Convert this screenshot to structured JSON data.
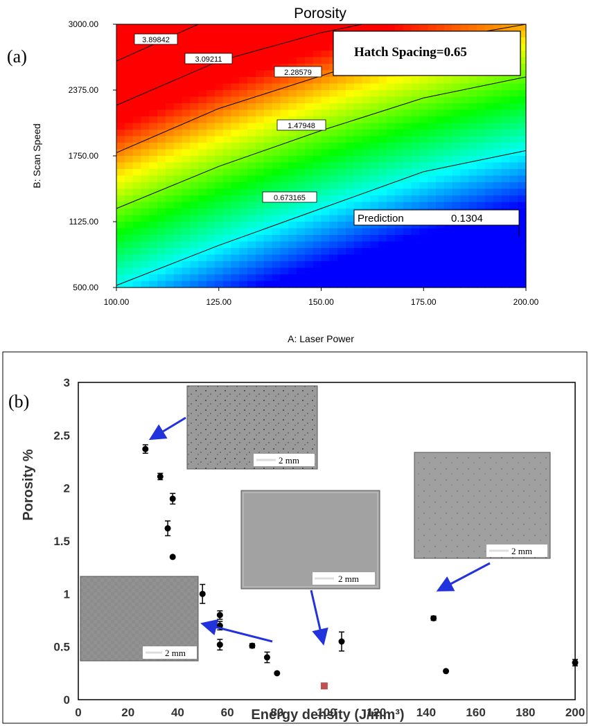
{
  "panel_labels": {
    "a": "(a)",
    "b": "(b)"
  },
  "chart_data": [
    {
      "type": "heatmap",
      "title": "Porosity",
      "xlabel": "A: Laser Power",
      "ylabel": "B: Scan Speed",
      "xlim": [
        100,
        200
      ],
      "ylim": [
        500,
        3000
      ],
      "x_ticks": [
        "100.00",
        "125.00",
        "150.00",
        "175.00",
        "200.00"
      ],
      "y_ticks": [
        "500.00",
        "1125.00",
        "1750.00",
        "2375.00",
        "3000.00"
      ],
      "colormap": [
        "#0000ff",
        "#00ffff",
        "#00ff00",
        "#ffff00",
        "#ff0000"
      ],
      "color_range": [
        0.13,
        2.2
      ],
      "contours": [
        {
          "label": "0.673165",
          "level": 0.673165,
          "points": [
            [
              100,
              520
            ],
            [
              125,
              900
            ],
            [
              150,
              1250
            ],
            [
              175,
              1600
            ],
            [
              200,
              1800
            ]
          ]
        },
        {
          "label": "1.47948",
          "level": 1.47948,
          "points": [
            [
              100,
              1250
            ],
            [
              125,
              1650
            ],
            [
              150,
              1990
            ],
            [
              175,
              2300
            ],
            [
              200,
              2500
            ]
          ]
        },
        {
          "label": "2.28579",
          "level": 2.28579,
          "points": [
            [
              100,
              1780
            ],
            [
              125,
              2200
            ],
            [
              150,
              2510
            ],
            [
              175,
              2830
            ],
            [
              200,
              3000
            ]
          ]
        },
        {
          "label": "3.09211",
          "level": 3.09211,
          "points": [
            [
              100,
              2230
            ],
            [
              125,
              2650
            ],
            [
              150,
              2920
            ],
            [
              160,
              3000
            ]
          ]
        },
        {
          "label": "3.89842",
          "level": 3.89842,
          "points": [
            [
              100,
              2650
            ],
            [
              120,
              3000
            ]
          ]
        }
      ],
      "annotations": {
        "hatch_spacing": "Hatch Spacing=0.65",
        "prediction_label": "Prediction",
        "prediction_value": "0.1304"
      }
    },
    {
      "type": "scatter",
      "xlabel": "Energy density (J/mm³)",
      "ylabel": "Porosity %",
      "xlim": [
        0,
        200
      ],
      "ylim": [
        0,
        3
      ],
      "x_ticks": [
        "0",
        "20",
        "40",
        "60",
        "80",
        "100",
        "120",
        "140",
        "160",
        "180",
        "200"
      ],
      "y_ticks": [
        "0",
        "0.5",
        "1",
        "1.5",
        "2",
        "2.5",
        "3"
      ],
      "series": [
        {
          "marker": "circle",
          "color": "#000000",
          "points": [
            {
              "x": 27,
              "y": 2.37,
              "err": 0.04
            },
            {
              "x": 33,
              "y": 2.11,
              "err": 0.03
            },
            {
              "x": 38,
              "y": 1.9,
              "err": 0.05
            },
            {
              "x": 36,
              "y": 1.62,
              "err": 0.07
            },
            {
              "x": 38,
              "y": 1.35,
              "err": 0
            },
            {
              "x": 50,
              "y": 1.0,
              "err": 0.09
            },
            {
              "x": 57,
              "y": 0.8,
              "err": 0.04
            },
            {
              "x": 57,
              "y": 0.7,
              "err": 0.04
            },
            {
              "x": 57,
              "y": 0.52,
              "err": 0.05
            },
            {
              "x": 70,
              "y": 0.51,
              "err": 0.02
            },
            {
              "x": 76,
              "y": 0.4,
              "err": 0.05
            },
            {
              "x": 80,
              "y": 0.25,
              "err": 0
            },
            {
              "x": 106,
              "y": 0.55,
              "err": 0.09
            },
            {
              "x": 143,
              "y": 0.77,
              "err": 0.02
            },
            {
              "x": 148,
              "y": 0.27,
              "err": 0
            },
            {
              "x": 200,
              "y": 0.35,
              "err": 0.03
            }
          ]
        },
        {
          "marker": "square",
          "color": "#c0504d",
          "points": [
            {
              "x": 99,
              "y": 0.13,
              "err": 0
            }
          ]
        }
      ],
      "insets": [
        {
          "scale_label": "2 mm",
          "density": "high",
          "arrow_to": [
            27,
            2.37
          ]
        },
        {
          "scale_label": "2 mm",
          "density": "none",
          "arrow_to": [
            99,
            0.13
          ]
        },
        {
          "scale_label": "2 mm",
          "density": "medium",
          "arrow_to": [
            143,
            0.77
          ]
        },
        {
          "scale_label": "2 mm",
          "density": "low",
          "arrow_to": [
            48,
            0.45
          ]
        }
      ]
    }
  ]
}
